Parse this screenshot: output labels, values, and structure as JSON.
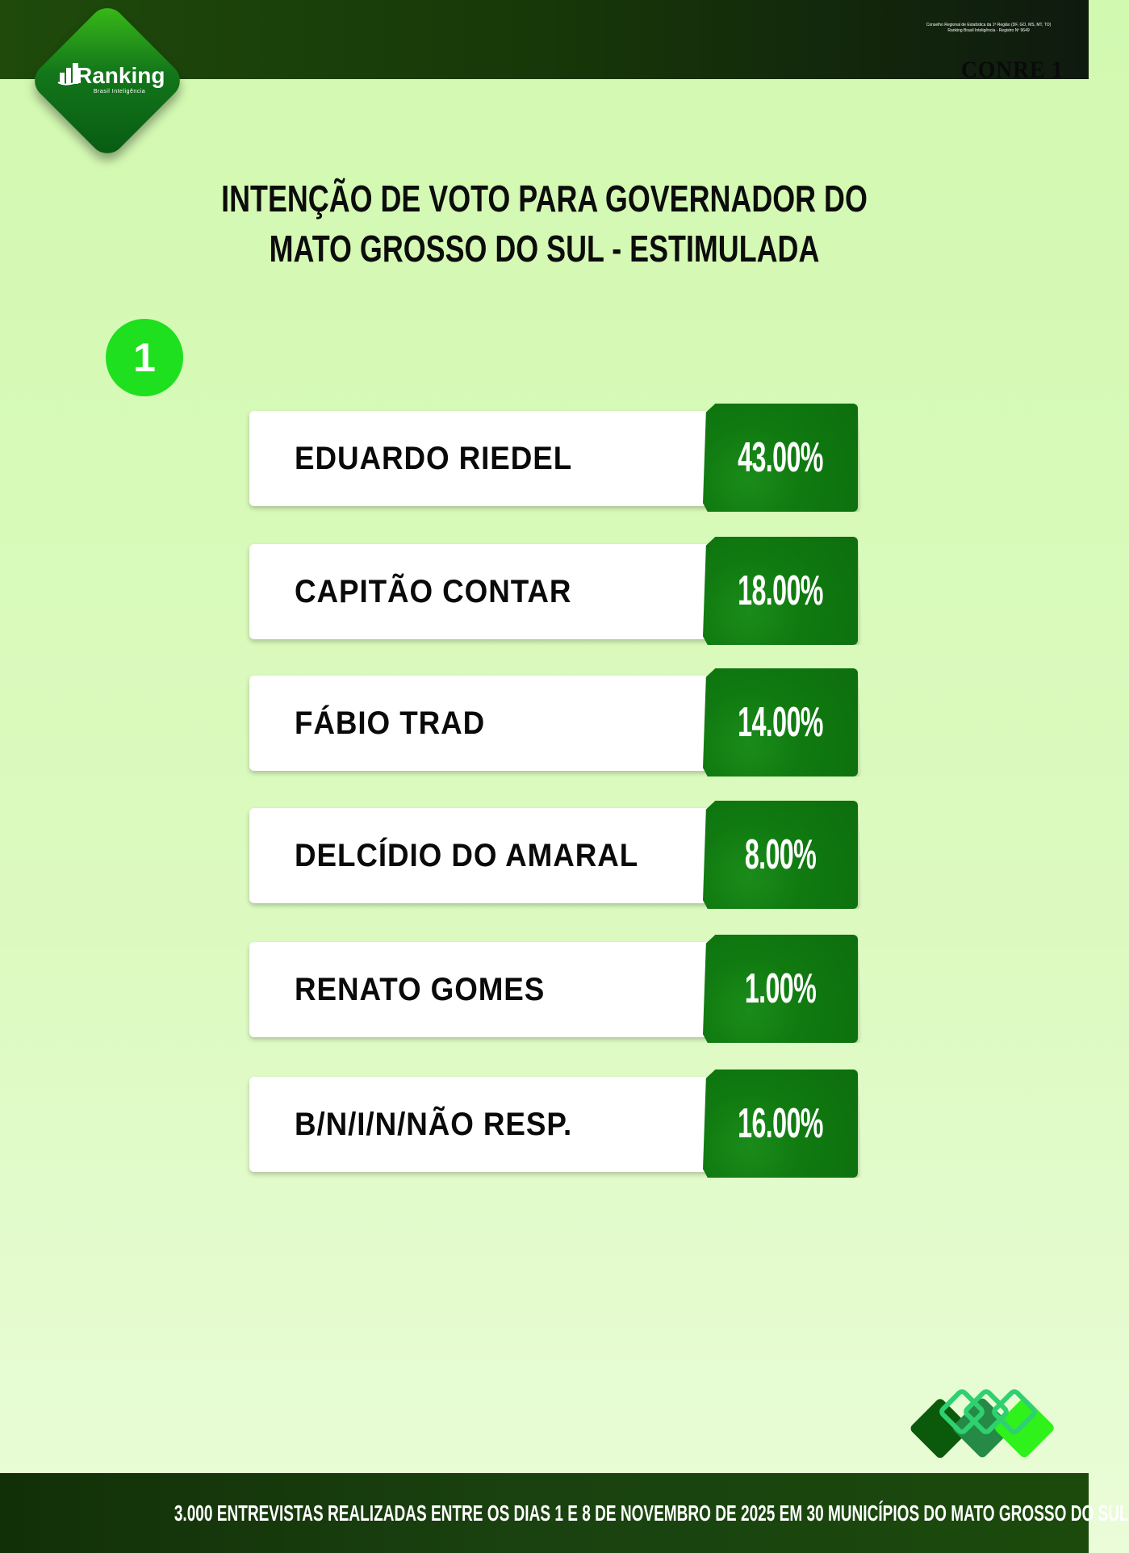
{
  "header": {
    "logo_left": {
      "name": "Ranking",
      "tagline": "Brasil Inteligência"
    },
    "logo_right": {
      "name": "CONRE 1",
      "line1": "Conselho Regional de Estatística da 1ª Região (DF, GO, MS, MT, TO)",
      "line2": "Ranking Brasil Inteligência - Registro Nº 9649"
    }
  },
  "title_line1": "INTENÇÃO DE VOTO PARA GOVERNADOR DO",
  "title_line2": "MATO GROSSO DO SUL - ESTIMULADA",
  "badge": "1",
  "colors": {
    "accent": "#107a10",
    "badge": "#1ee01e",
    "bar": "#173808"
  },
  "chart_data": {
    "type": "table",
    "title": "INTENÇÃO DE VOTO PARA GOVERNADOR DO MATO GROSSO DO SUL - ESTIMULADA",
    "rows": [
      {
        "name": "EDUARDO RIEDEL",
        "value": "43.00%"
      },
      {
        "name": "CAPITÃO CONTAR",
        "value": "18.00%"
      },
      {
        "name": "FÁBIO TRAD",
        "value": "14.00%"
      },
      {
        "name": "DELCÍDIO DO AMARAL",
        "value": "8.00%"
      },
      {
        "name": "RENATO GOMES",
        "value": "1.00%"
      },
      {
        "name": "B/N/I/N/NÃO RESP.",
        "value": "16.00%"
      }
    ]
  },
  "footer": "3.000 ENTREVISTAS REALIZADAS ENTRE OS DIAS 1 E 8 DE NOVEMBRO DE 2025 EM 30 MUNICÍPIOS DO MATO GROSSO DO SUL"
}
